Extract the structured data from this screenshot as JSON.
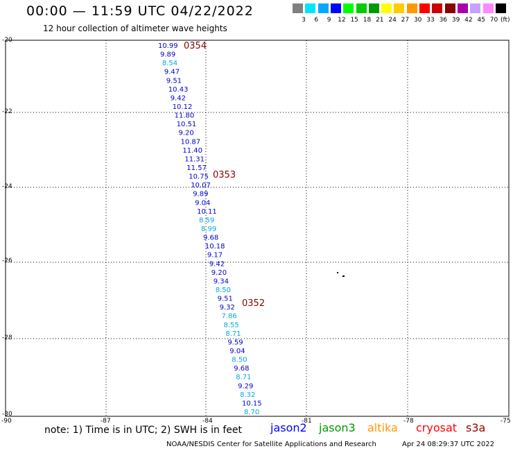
{
  "header": {
    "title": "00:00 — 11:59 UTC 04/22/2022",
    "subtitle": "12 hour collection of altimeter wave heights"
  },
  "legend": {
    "colors": [
      "#808080",
      "#00e5ff",
      "#00a8ff",
      "#0000ff",
      "#00ff00",
      "#00cc00",
      "#009900",
      "#ffff00",
      "#ffcc00",
      "#ff9900",
      "#ff0000",
      "#cc0000",
      "#880000",
      "#aa00aa",
      "#c8a0ff",
      "#ff88ff",
      "#000000"
    ],
    "labels": [
      "3",
      "6",
      "9",
      "12",
      "15",
      "18",
      "21",
      "24",
      "27",
      "30",
      "33",
      "36",
      "39",
      "42",
      "45",
      "70"
    ],
    "unit": "(ft)"
  },
  "axes": {
    "lat_labels": [
      "-20",
      "-22",
      "-24",
      "-26",
      "-28",
      "-30"
    ],
    "lon_labels": [
      "-90",
      "-87",
      "-84",
      "-81",
      "-78",
      "-75"
    ]
  },
  "orbits": [
    "0354",
    "0353",
    "0352"
  ],
  "wave_heights": [
    {
      "value": "10.99",
      "color": "#0000cc"
    },
    {
      "value": "9.89",
      "color": "#0000cc"
    },
    {
      "value": "8.54",
      "color": "#00a8e0"
    },
    {
      "value": "9.47",
      "color": "#0000cc"
    },
    {
      "value": "9.51",
      "color": "#0000cc"
    },
    {
      "value": "10.43",
      "color": "#0000cc"
    },
    {
      "value": "9.42",
      "color": "#0000cc"
    },
    {
      "value": "10.12",
      "color": "#0000cc"
    },
    {
      "value": "11.80",
      "color": "#0000cc"
    },
    {
      "value": "10.51",
      "color": "#0000cc"
    },
    {
      "value": "9.20",
      "color": "#0000cc"
    },
    {
      "value": "10.87",
      "color": "#0000cc"
    },
    {
      "value": "11.40",
      "color": "#0000cc"
    },
    {
      "value": "11.31",
      "color": "#0000cc"
    },
    {
      "value": "11.57",
      "color": "#0000cc"
    },
    {
      "value": "10.75",
      "color": "#0000cc"
    },
    {
      "value": "10.07",
      "color": "#0000cc"
    },
    {
      "value": "9.89",
      "color": "#0000cc"
    },
    {
      "value": "9.04",
      "color": "#0000cc"
    },
    {
      "value": "10.11",
      "color": "#0000cc"
    },
    {
      "value": "8.59",
      "color": "#00a8e0"
    },
    {
      "value": "8.99",
      "color": "#00a8e0"
    },
    {
      "value": "9.68",
      "color": "#0000cc"
    },
    {
      "value": "10.18",
      "color": "#0000cc"
    },
    {
      "value": "9.17",
      "color": "#0000cc"
    },
    {
      "value": "9.42",
      "color": "#0000cc"
    },
    {
      "value": "9.20",
      "color": "#0000cc"
    },
    {
      "value": "9.34",
      "color": "#0000cc"
    },
    {
      "value": "8.50",
      "color": "#00a8e0"
    },
    {
      "value": "9.51",
      "color": "#0000cc"
    },
    {
      "value": "9.32",
      "color": "#0000cc"
    },
    {
      "value": "7.86",
      "color": "#00a8e0"
    },
    {
      "value": "8.55",
      "color": "#00a8e0"
    },
    {
      "value": "8.71",
      "color": "#00a8e0"
    },
    {
      "value": "9.59",
      "color": "#0000cc"
    },
    {
      "value": "9.04",
      "color": "#0000cc"
    },
    {
      "value": "8.50",
      "color": "#00a8e0"
    },
    {
      "value": "9.68",
      "color": "#0000cc"
    },
    {
      "value": "8.71",
      "color": "#00a8e0"
    },
    {
      "value": "9.29",
      "color": "#0000cc"
    },
    {
      "value": "8.32",
      "color": "#00a8e0"
    },
    {
      "value": "10.15",
      "color": "#0000cc"
    },
    {
      "value": "8.70",
      "color": "#00a8e0"
    }
  ],
  "footer": {
    "note": "note:  1) Time is in UTC;  2) SWH is in feet",
    "satellites": [
      {
        "name": "jason2",
        "color": "#0000ff"
      },
      {
        "name": "jason3",
        "color": "#009900"
      },
      {
        "name": "altika",
        "color": "#ff9900"
      },
      {
        "name": "cryosat",
        "color": "#ff0000"
      },
      {
        "name": "s3a",
        "color": "#990000"
      }
    ],
    "credit": "NOAA/NESDIS Center for Satellite Applications and Research",
    "timestamp": "Apr 24 08:29:37 UTC 2022"
  }
}
